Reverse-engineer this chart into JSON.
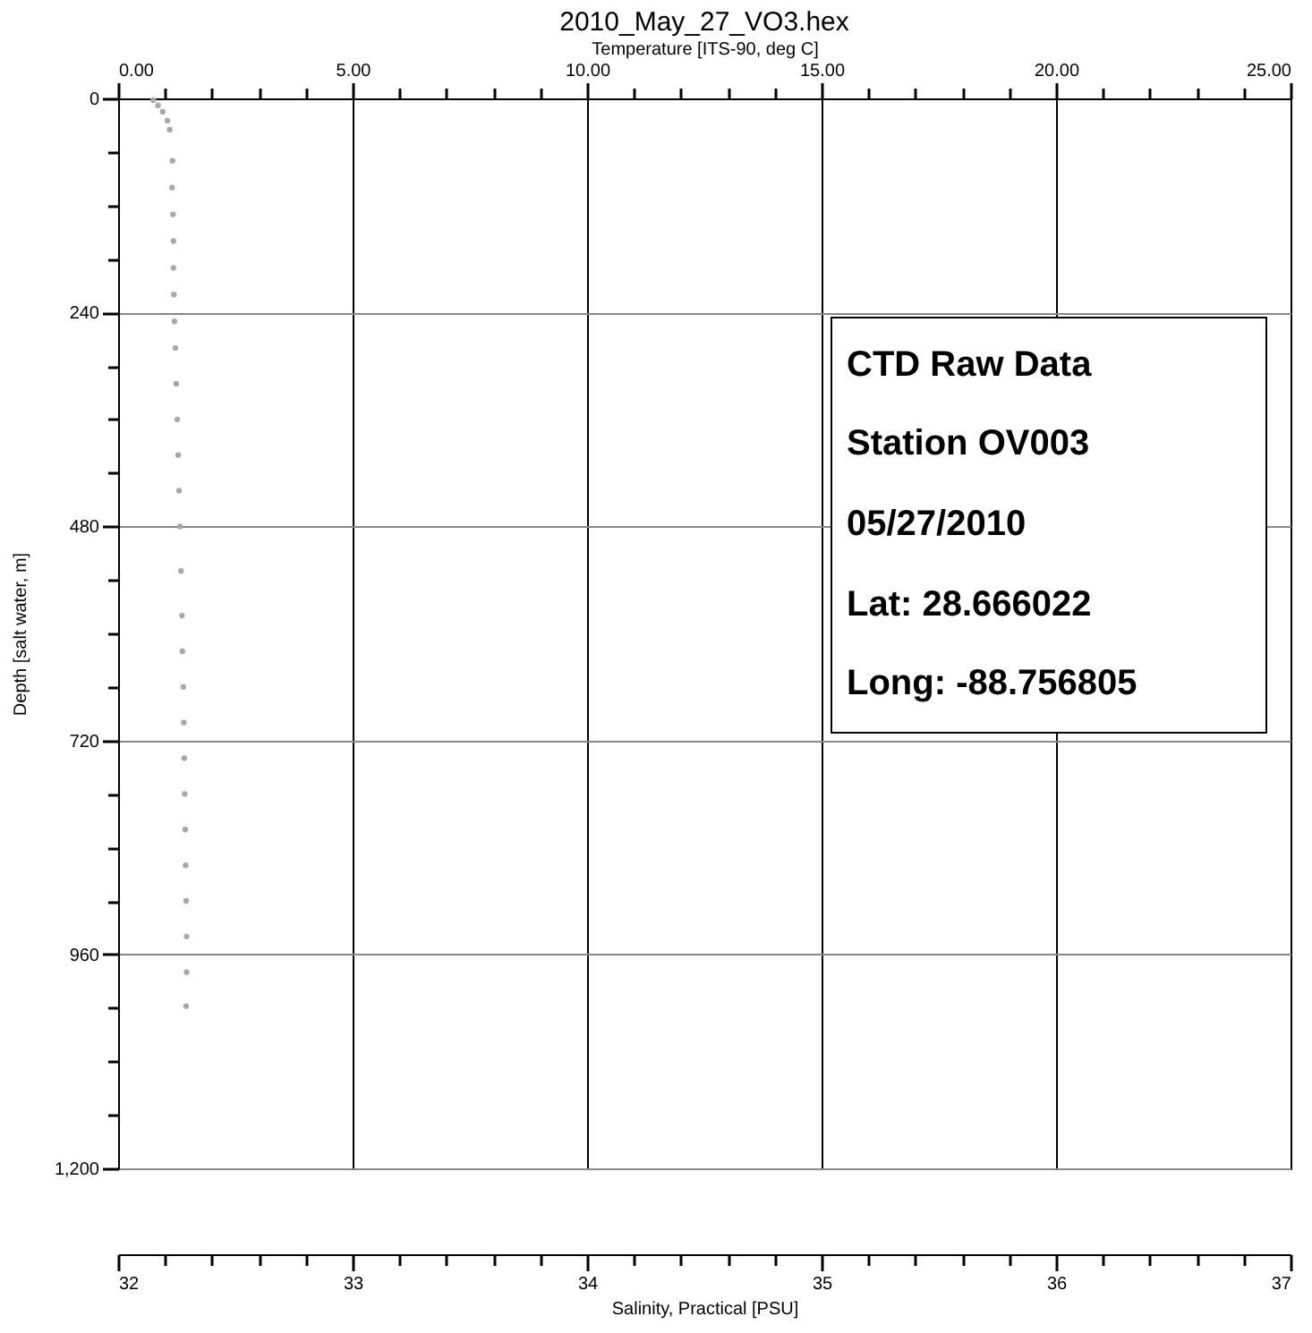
{
  "chart_data": {
    "type": "scatter",
    "title": "2010_May_27_VO3.hex",
    "xlabel": "Temperature [ITS-90, deg C]",
    "ylabel": "Depth [salt water, m]",
    "x2label": "Salinity, Practical [PSU]",
    "annotations": [
      "CTD Raw Data",
      "Station OV003",
      "05/27/2010",
      "Lat: 28.666022",
      "Long: -88.756805"
    ],
    "series": [
      {
        "color": "#a8a8a8",
        "x": [
          0.75,
          0.85,
          0.95,
          1.05,
          1.1,
          1.16,
          1.15,
          1.17,
          1.18,
          1.18,
          1.19,
          1.2,
          1.22,
          1.24,
          1.26,
          1.28,
          1.3,
          1.32,
          1.34,
          1.36,
          1.37,
          1.39,
          1.4,
          1.41,
          1.42,
          1.43,
          1.44,
          1.45,
          1.46,
          1.46,
          1.45
        ],
        "values": [
          2,
          8,
          15,
          25,
          35,
          70,
          100,
          130,
          160,
          190,
          220,
          250,
          280,
          320,
          360,
          400,
          440,
          480,
          530,
          580,
          620,
          660,
          700,
          740,
          780,
          820,
          860,
          900,
          940,
          980,
          1018
        ]
      }
    ],
    "xlim": [
      0,
      25
    ],
    "xticks": [
      {
        "value": 0,
        "label": "0.00"
      },
      {
        "value": 1,
        "label": null
      },
      {
        "value": 2,
        "label": null
      },
      {
        "value": 3,
        "label": null
      },
      {
        "value": 4,
        "label": null
      },
      {
        "value": 5,
        "label": "5.00"
      },
      {
        "value": 6,
        "label": null
      },
      {
        "value": 7,
        "label": null
      },
      {
        "value": 8,
        "label": null
      },
      {
        "value": 9,
        "label": null
      },
      {
        "value": 10,
        "label": "10.00"
      },
      {
        "value": 11,
        "label": null
      },
      {
        "value": 12,
        "label": null
      },
      {
        "value": 13,
        "label": null
      },
      {
        "value": 14,
        "label": null
      },
      {
        "value": 15,
        "label": "15.00"
      },
      {
        "value": 16,
        "label": null
      },
      {
        "value": 17,
        "label": null
      },
      {
        "value": 18,
        "label": null
      },
      {
        "value": 19,
        "label": null
      },
      {
        "value": 20,
        "label": "20.00"
      },
      {
        "value": 21,
        "label": null
      },
      {
        "value": 22,
        "label": null
      },
      {
        "value": 23,
        "label": null
      },
      {
        "value": 24,
        "label": null
      },
      {
        "value": 25,
        "label": "25.00"
      }
    ],
    "ylim": [
      1200,
      0
    ],
    "yticks": [
      0,
      {
        "value": 60,
        "label": null
      },
      {
        "value": 120,
        "label": null
      },
      {
        "value": 180,
        "label": null
      },
      240,
      {
        "value": 300,
        "label": null
      },
      {
        "value": 360,
        "label": null
      },
      {
        "value": 420,
        "label": null
      },
      480,
      {
        "value": 540,
        "label": null
      },
      {
        "value": 600,
        "label": null
      },
      {
        "value": 660,
        "label": null
      },
      720,
      {
        "value": 780,
        "label": null
      },
      {
        "value": 840,
        "label": null
      },
      {
        "value": 900,
        "label": null
      },
      960,
      {
        "value": 1020,
        "label": null
      },
      {
        "value": 1080,
        "label": null
      },
      {
        "value": 1140,
        "label": null
      },
      {
        "value": 1200,
        "label": "1,200"
      }
    ],
    "x2lim": [
      32,
      37
    ],
    "x2ticks": [
      32,
      {
        "value": 32.2,
        "label": null
      },
      {
        "value": 32.4,
        "label": null
      },
      {
        "value": 32.6,
        "label": null
      },
      {
        "value": 32.8,
        "label": null
      },
      33,
      {
        "value": 33.2,
        "label": null
      },
      {
        "value": 33.4,
        "label": null
      },
      {
        "value": 33.6,
        "label": null
      },
      {
        "value": 33.8,
        "label": null
      },
      34,
      {
        "value": 34.2,
        "label": null
      },
      {
        "value": 34.4,
        "label": null
      },
      {
        "value": 34.6,
        "label": null
      },
      {
        "value": 34.8,
        "label": null
      },
      35,
      {
        "value": 35.2,
        "label": null
      },
      {
        "value": 35.4,
        "label": null
      },
      {
        "value": 35.6,
        "label": null
      },
      {
        "value": 35.8,
        "label": null
      },
      36,
      {
        "value": 36.2,
        "label": null
      },
      {
        "value": 36.4,
        "label": null
      },
      {
        "value": 36.6,
        "label": null
      },
      {
        "value": 36.8,
        "label": null
      },
      37
    ],
    "grid": true,
    "marker": "circle"
  }
}
